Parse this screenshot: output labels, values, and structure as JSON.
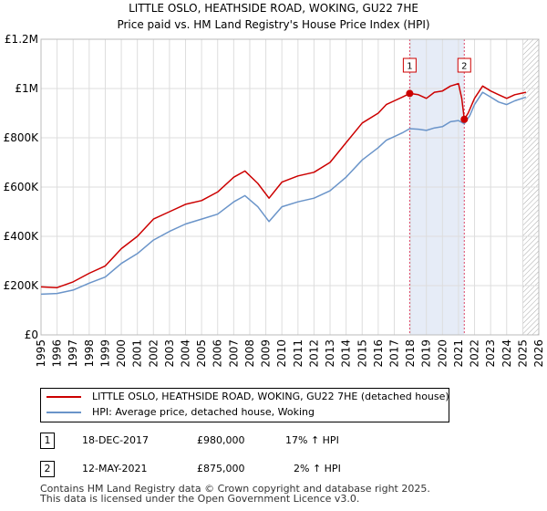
{
  "chart_data": {
    "type": "line",
    "title": "LITTLE OSLO, HEATHSIDE ROAD, WOKING, GU22 7HE",
    "subtitle": "Price paid vs. HM Land Registry's House Price Index (HPI)",
    "xlabel": "",
    "ylabel": "",
    "xlim": [
      1995,
      2026
    ],
    "ylim": [
      0,
      1200000
    ],
    "x_ticks": [
      "1995",
      "1996",
      "1997",
      "1998",
      "1999",
      "2000",
      "2001",
      "2002",
      "2003",
      "2004",
      "2005",
      "2006",
      "2007",
      "2008",
      "2009",
      "2010",
      "2011",
      "2012",
      "2013",
      "2014",
      "2015",
      "2016",
      "2017",
      "2018",
      "2019",
      "2020",
      "2021",
      "2022",
      "2023",
      "2024",
      "2025",
      "2026"
    ],
    "y_ticks": [
      {
        "value": 0,
        "label": "£0"
      },
      {
        "value": 200000,
        "label": "£200K"
      },
      {
        "value": 400000,
        "label": "£400K"
      },
      {
        "value": 600000,
        "label": "£600K"
      },
      {
        "value": 800000,
        "label": "£800K"
      },
      {
        "value": 1000000,
        "label": "£1M"
      },
      {
        "value": 1200000,
        "label": "£1.2M"
      }
    ],
    "grid": true,
    "future_hatch_from": 2025.0,
    "sale_highlight": [
      2017.96,
      2021.36
    ],
    "series": [
      {
        "name": "LITTLE OSLO, HEATHSIDE ROAD, WOKING, GU22 7HE (detached house)",
        "color": "#cc0000",
        "points": [
          [
            1995.0,
            195000
          ],
          [
            1996.0,
            192000
          ],
          [
            1997.0,
            215000
          ],
          [
            1998.0,
            250000
          ],
          [
            1999.0,
            280000
          ],
          [
            2000.0,
            350000
          ],
          [
            2001.0,
            400000
          ],
          [
            2002.0,
            470000
          ],
          [
            2003.0,
            500000
          ],
          [
            2004.0,
            530000
          ],
          [
            2005.0,
            545000
          ],
          [
            2006.0,
            580000
          ],
          [
            2007.0,
            640000
          ],
          [
            2007.7,
            665000
          ],
          [
            2008.5,
            615000
          ],
          [
            2009.2,
            555000
          ],
          [
            2010.0,
            620000
          ],
          [
            2011.0,
            645000
          ],
          [
            2012.0,
            660000
          ],
          [
            2013.0,
            700000
          ],
          [
            2014.0,
            780000
          ],
          [
            2015.0,
            860000
          ],
          [
            2016.0,
            900000
          ],
          [
            2016.5,
            935000
          ],
          [
            2017.0,
            950000
          ],
          [
            2017.5,
            965000
          ],
          [
            2017.96,
            980000
          ],
          [
            2018.5,
            975000
          ],
          [
            2019.0,
            960000
          ],
          [
            2019.5,
            985000
          ],
          [
            2020.0,
            990000
          ],
          [
            2020.5,
            1010000
          ],
          [
            2021.0,
            1020000
          ],
          [
            2021.2,
            960000
          ],
          [
            2021.36,
            875000
          ],
          [
            2021.6,
            900000
          ],
          [
            2022.0,
            960000
          ],
          [
            2022.5,
            1010000
          ],
          [
            2023.0,
            990000
          ],
          [
            2023.5,
            975000
          ],
          [
            2024.0,
            960000
          ],
          [
            2024.5,
            975000
          ],
          [
            2025.2,
            985000
          ]
        ]
      },
      {
        "name": "HPI: Average price, detached house, Woking",
        "color": "#6a94c9",
        "points": [
          [
            1995.0,
            165000
          ],
          [
            1996.0,
            168000
          ],
          [
            1997.0,
            182000
          ],
          [
            1998.0,
            210000
          ],
          [
            1999.0,
            235000
          ],
          [
            2000.0,
            290000
          ],
          [
            2001.0,
            330000
          ],
          [
            2002.0,
            385000
          ],
          [
            2003.0,
            420000
          ],
          [
            2004.0,
            450000
          ],
          [
            2005.0,
            470000
          ],
          [
            2006.0,
            490000
          ],
          [
            2007.0,
            540000
          ],
          [
            2007.7,
            565000
          ],
          [
            2008.5,
            520000
          ],
          [
            2009.2,
            460000
          ],
          [
            2010.0,
            520000
          ],
          [
            2011.0,
            540000
          ],
          [
            2012.0,
            555000
          ],
          [
            2013.0,
            585000
          ],
          [
            2014.0,
            640000
          ],
          [
            2015.0,
            710000
          ],
          [
            2016.0,
            760000
          ],
          [
            2016.5,
            790000
          ],
          [
            2017.0,
            805000
          ],
          [
            2017.5,
            820000
          ],
          [
            2017.96,
            837000
          ],
          [
            2018.5,
            835000
          ],
          [
            2019.0,
            830000
          ],
          [
            2019.5,
            840000
          ],
          [
            2020.0,
            845000
          ],
          [
            2020.5,
            865000
          ],
          [
            2021.0,
            870000
          ],
          [
            2021.36,
            857000
          ],
          [
            2021.7,
            890000
          ],
          [
            2022.0,
            935000
          ],
          [
            2022.5,
            985000
          ],
          [
            2023.0,
            965000
          ],
          [
            2023.5,
            945000
          ],
          [
            2024.0,
            935000
          ],
          [
            2024.5,
            950000
          ],
          [
            2025.2,
            965000
          ]
        ]
      }
    ],
    "markers": [
      {
        "label": "1",
        "x": 2017.96,
        "y": 980000
      },
      {
        "label": "2",
        "x": 2021.36,
        "y": 875000
      }
    ]
  },
  "legend": {
    "items": [
      {
        "label": "LITTLE OSLO, HEATHSIDE ROAD, WOKING, GU22 7HE (detached house)",
        "color": "#cc0000"
      },
      {
        "label": "HPI: Average price, detached house, Woking",
        "color": "#6a94c9"
      }
    ]
  },
  "sales": [
    {
      "num": "1",
      "date": "18-DEC-2017",
      "price": "£980,000",
      "hpi": "17% ↑ HPI"
    },
    {
      "num": "2",
      "date": "12-MAY-2021",
      "price": "£875,000",
      "hpi": "2% ↑ HPI"
    }
  ],
  "footer": {
    "line1": "Contains HM Land Registry data © Crown copyright and database right 2025.",
    "line2": "This data is licensed under the Open Government Licence v3.0."
  }
}
